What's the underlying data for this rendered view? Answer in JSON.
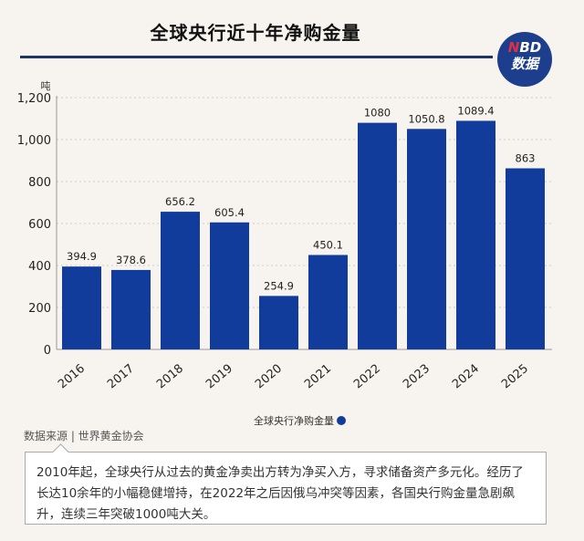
{
  "header": {
    "title": "全球央行近十年净购金量",
    "logo_top": "NBD",
    "logo_bottom": "数据"
  },
  "chart_data": {
    "type": "bar",
    "title": "全球央行近十年净购金量",
    "ylabel": "吨",
    "categories": [
      "2016",
      "2017",
      "2018",
      "2019",
      "2020",
      "2021",
      "2022",
      "2023",
      "2024",
      "2025"
    ],
    "values": [
      394.9,
      378.6,
      656.2,
      605.4,
      254.9,
      450.1,
      1080,
      1050.8,
      1089.4,
      863
    ],
    "data_labels": [
      "394.9",
      "378.6",
      "656.2",
      "605.4",
      "254.9",
      "450.1",
      "1080",
      "1050.8",
      "1089.4",
      "863"
    ],
    "ylim": [
      0,
      1200
    ],
    "yticks": [
      0,
      200,
      400,
      600,
      800,
      1000,
      1200
    ],
    "ytick_labels": [
      "0",
      "200",
      "400",
      "600",
      "800",
      "1,000",
      "1,200"
    ],
    "grid": true,
    "legend": {
      "position": "bottom",
      "label": "全球央行净购金量"
    },
    "bar_color": "#123c9c"
  },
  "source": "数据来源 | 世界黄金协会",
  "note": "2010年起，全球央行从过去的黄金净卖出方转为净买入方，寻求储备资产多元化。经历了长达10余年的小幅稳健增持，在2022年之后因俄乌冲突等因素，各国央行购金量急剧飙升，连续三年突破1000吨大关。"
}
